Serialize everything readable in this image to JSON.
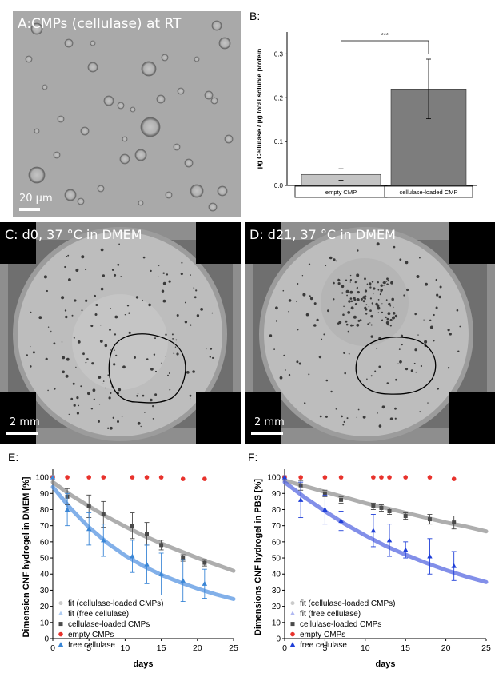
{
  "panels": {
    "a": {
      "label": "A:CMPs (cellulase) at RT",
      "scale_bar": "20 µm"
    },
    "b": {
      "label": "B:"
    },
    "c": {
      "label": "C: d0, 37 °C in DMEM",
      "scale_bar": "2 mm"
    },
    "d": {
      "label": "D: d21, 37 °C in DMEM",
      "scale_bar": "2 mm"
    },
    "e": {
      "label": "E:"
    },
    "f": {
      "label": "F:"
    }
  },
  "chart_data": [
    {
      "id": "B",
      "type": "bar",
      "ylabel": "µg Cellulase / µg total soluble protein",
      "ylim": [
        0,
        0.35
      ],
      "yticks": [
        0.0,
        0.1,
        0.2,
        0.3
      ],
      "categories": [
        "empty CMP",
        "cellulase-loaded CMP"
      ],
      "values": [
        0.025,
        0.22
      ],
      "errors": [
        0.013,
        0.068
      ],
      "bar_colors": [
        "#c4c4c4",
        "#7d7d7d"
      ],
      "significance": "***"
    },
    {
      "id": "E",
      "type": "scatter",
      "xlabel": "days",
      "ylabel": "Dimension CNF hydrogel in DMEM [%]",
      "xlim": [
        0,
        25
      ],
      "ylim": [
        0,
        105
      ],
      "xticks": [
        0,
        5,
        10,
        15,
        20,
        25
      ],
      "yticks": [
        0,
        10,
        20,
        30,
        40,
        50,
        60,
        70,
        80,
        90,
        100
      ],
      "legend_position": "bottom-left",
      "series": [
        {
          "name": "fit (cellulase-loaded CMPs)",
          "kind": "fit",
          "color": "#8c8c8c",
          "x": [
            0,
            2.5,
            5,
            7.5,
            10,
            12.5,
            15,
            17.5,
            20,
            22.5,
            25
          ],
          "y": [
            97,
            89,
            82,
            75.5,
            69.5,
            64,
            59,
            54.5,
            50,
            46,
            42
          ]
        },
        {
          "name": "fit (free cellulase)",
          "kind": "fit",
          "color": "#4d8fe0",
          "x": [
            0,
            2.5,
            5,
            7.5,
            10,
            12.5,
            15,
            17.5,
            20,
            22.5,
            25
          ],
          "y": [
            94,
            80.5,
            69,
            59.5,
            51.5,
            45,
            39.5,
            35,
            31,
            27.5,
            24.5
          ]
        },
        {
          "name": "cellulase-loaded CMPs",
          "kind": "points",
          "marker": "square",
          "color": "#4a4a4a",
          "x": [
            0,
            2,
            5,
            7,
            11,
            13,
            15,
            18,
            21
          ],
          "y": [
            100,
            88,
            82,
            77,
            70,
            65,
            58,
            50,
            47
          ],
          "err": [
            0,
            5,
            7,
            8,
            8,
            7,
            3,
            2,
            2
          ]
        },
        {
          "name": "empty CMPs",
          "kind": "points",
          "marker": "circle",
          "color": "#e8322c",
          "x": [
            0,
            2,
            5,
            7,
            11,
            13,
            15,
            18,
            21
          ],
          "y": [
            100,
            100,
            100,
            100,
            100,
            100,
            100,
            99,
            99
          ],
          "err": [
            0,
            0,
            0,
            0,
            0,
            0,
            0,
            0,
            0
          ]
        },
        {
          "name": "free cellulase",
          "kind": "points",
          "marker": "triangle",
          "color": "#3a86d6",
          "x": [
            0,
            2,
            5,
            7,
            11,
            13,
            15,
            18,
            21
          ],
          "y": [
            100,
            80,
            68,
            61,
            51,
            46,
            40,
            36,
            34
          ],
          "err": [
            0,
            10,
            10,
            10,
            10,
            12,
            13,
            13,
            9
          ]
        }
      ]
    },
    {
      "id": "F",
      "type": "scatter",
      "xlabel": "days",
      "ylabel": "Dimensions CNF hydrogel in PBS [%]",
      "xlim": [
        0,
        25
      ],
      "ylim": [
        0,
        105
      ],
      "xticks": [
        0,
        5,
        10,
        15,
        20,
        25
      ],
      "yticks": [
        0,
        10,
        20,
        30,
        40,
        50,
        60,
        70,
        80,
        90,
        100
      ],
      "legend_position": "bottom-left",
      "series": [
        {
          "name": "fit (cellulase-loaded CMPs)",
          "kind": "fit",
          "color": "#8c8c8c",
          "x": [
            0,
            2.5,
            5,
            7.5,
            10,
            12.5,
            15,
            17.5,
            20,
            22.5,
            25
          ],
          "y": [
            98,
            94.5,
            91,
            87.5,
            84,
            81,
            78,
            75,
            72,
            69.5,
            66.5
          ]
        },
        {
          "name": "fit (free cellulase)",
          "kind": "fit",
          "color": "#4d5fe0",
          "x": [
            0,
            2.5,
            5,
            7.5,
            10,
            12.5,
            15,
            17.5,
            20,
            22.5,
            25
          ],
          "y": [
            97,
            87.5,
            79,
            71,
            64,
            57.5,
            52,
            47,
            42.5,
            38.5,
            35
          ]
        },
        {
          "name": "cellulase-loaded CMPs",
          "kind": "points",
          "marker": "square",
          "color": "#4a4a4a",
          "x": [
            0,
            2,
            5,
            7,
            11,
            12,
            13,
            15,
            18,
            21
          ],
          "y": [
            100,
            95,
            90,
            86,
            82,
            81,
            79,
            76,
            74,
            72
          ],
          "err": [
            0,
            3,
            2,
            2,
            2,
            2,
            2,
            2,
            3,
            4
          ]
        },
        {
          "name": "empty CMPs",
          "kind": "points",
          "marker": "circle",
          "color": "#e8322c",
          "x": [
            0,
            2,
            5,
            7,
            11,
            12,
            13,
            15,
            18,
            21
          ],
          "y": [
            100,
            100,
            100,
            100,
            100,
            100,
            100,
            100,
            100,
            99
          ],
          "err": [
            0,
            0,
            0,
            0,
            0,
            0,
            0,
            0,
            0,
            0
          ]
        },
        {
          "name": "free cellulase",
          "kind": "points",
          "marker": "triangle",
          "color": "#1f3fd8",
          "x": [
            0,
            2,
            5,
            7,
            11,
            13,
            15,
            18,
            21
          ],
          "y": [
            100,
            86,
            80,
            73,
            67,
            61,
            55,
            51,
            45
          ],
          "err": [
            0,
            11,
            9,
            6,
            10,
            10,
            5,
            11,
            9
          ]
        }
      ]
    }
  ]
}
